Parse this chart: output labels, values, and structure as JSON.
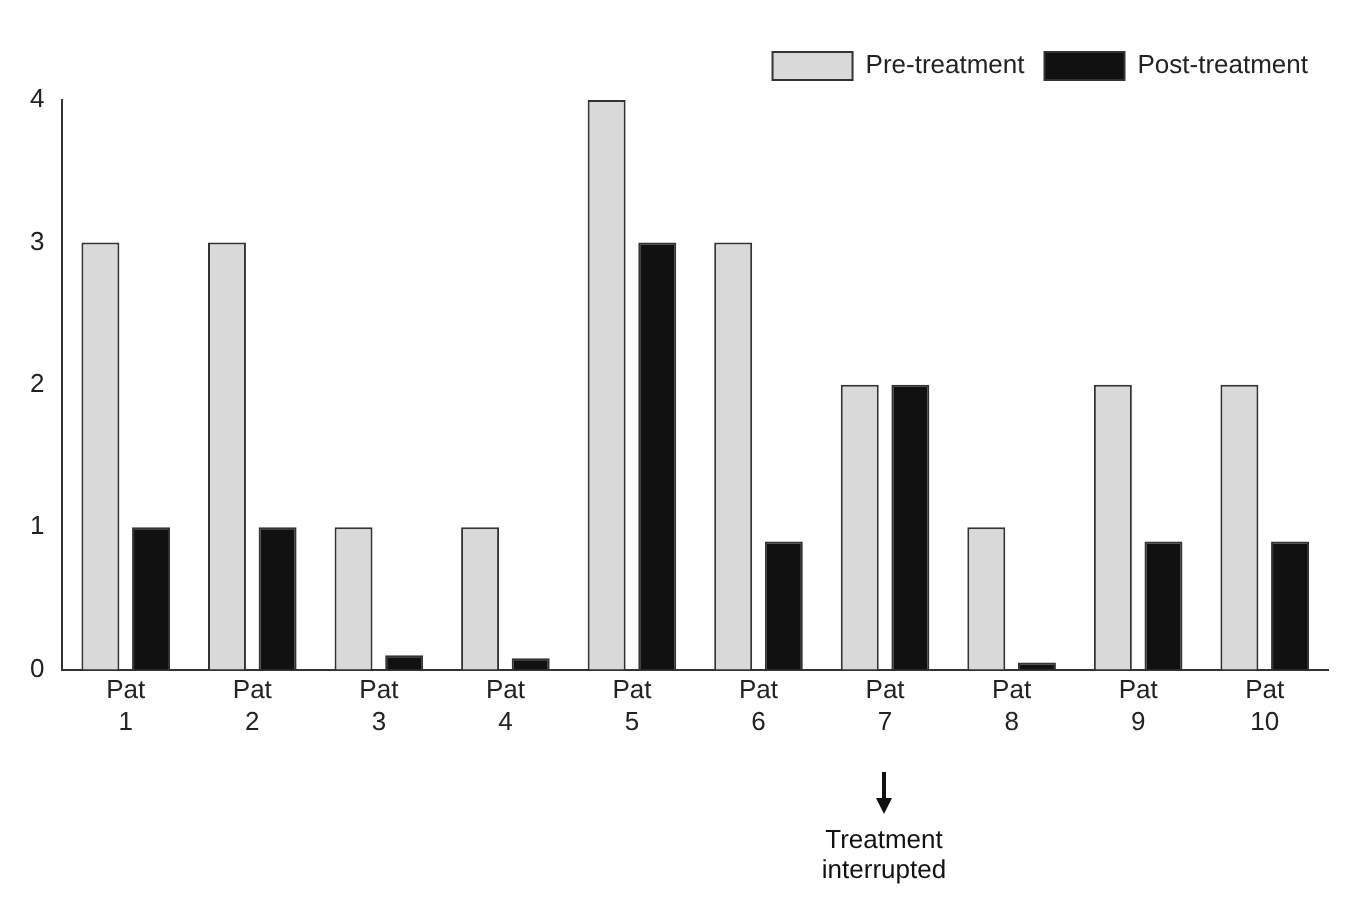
{
  "chart_data": {
    "type": "bar",
    "categories": [
      "Pat 1",
      "Pat 2",
      "Pat 3",
      "Pat 4",
      "Pat 5",
      "Pat 6",
      "Pat 7",
      "Pat 8",
      "Pat 9",
      "Pat 10"
    ],
    "series": [
      {
        "name": "Pre-treatment",
        "color": "#d9d9d9",
        "values": [
          3,
          3,
          1,
          1,
          4,
          3,
          2,
          1,
          2,
          2
        ]
      },
      {
        "name": "Post-treatment",
        "color": "#111111",
        "values": [
          1,
          1,
          0.1,
          0.08,
          3,
          0.9,
          2,
          0.05,
          0.9,
          0.9
        ]
      }
    ],
    "ylim": [
      0,
      4
    ],
    "yticks": [
      0,
      1,
      2,
      3,
      4
    ],
    "grid": false,
    "legend": "top right",
    "annotations": [
      "Treatment interrupted"
    ]
  }
}
